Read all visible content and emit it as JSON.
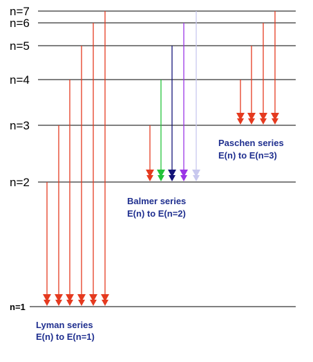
{
  "levels": [
    {
      "n": 1,
      "label": "n=1"
    },
    {
      "n": 2,
      "label": "n=2"
    },
    {
      "n": 3,
      "label": "n=3"
    },
    {
      "n": 4,
      "label": "n=4"
    },
    {
      "n": 5,
      "label": "n=5"
    },
    {
      "n": 6,
      "label": "n=6"
    },
    {
      "n": 7,
      "label": "n=7"
    }
  ],
  "series": [
    {
      "key": "lyman",
      "name": "Lyman series",
      "description": "E(n) to E(n=1)",
      "final_level": 1,
      "transitions": [
        {
          "from": 2,
          "color": "#e53a1f"
        },
        {
          "from": 3,
          "color": "#e53a1f"
        },
        {
          "from": 4,
          "color": "#e53a1f"
        },
        {
          "from": 5,
          "color": "#e53a1f"
        },
        {
          "from": 6,
          "color": "#e53a1f"
        },
        {
          "from": 7,
          "color": "#e53a1f"
        }
      ]
    },
    {
      "key": "balmer",
      "name": "Balmer series",
      "description": "E(n) to E(n=2)",
      "final_level": 2,
      "transitions": [
        {
          "from": 3,
          "color": "#e53a1f"
        },
        {
          "from": 4,
          "color": "#22c33a"
        },
        {
          "from": 5,
          "color": "#141478"
        },
        {
          "from": 6,
          "color": "#9b35e6"
        },
        {
          "from": 7,
          "color": "#c8c8ee"
        }
      ]
    },
    {
      "key": "paschen",
      "name": "Paschen series",
      "description": "E(n) to E(n=3)",
      "final_level": 3,
      "transitions": [
        {
          "from": 4,
          "color": "#e53a1f"
        },
        {
          "from": 5,
          "color": "#e53a1f"
        },
        {
          "from": 6,
          "color": "#e53a1f"
        },
        {
          "from": 7,
          "color": "#e53a1f"
        }
      ]
    }
  ],
  "colors": {
    "level_line": "#000000",
    "label_text": "#000000",
    "series_text": "#1f2f8f"
  }
}
